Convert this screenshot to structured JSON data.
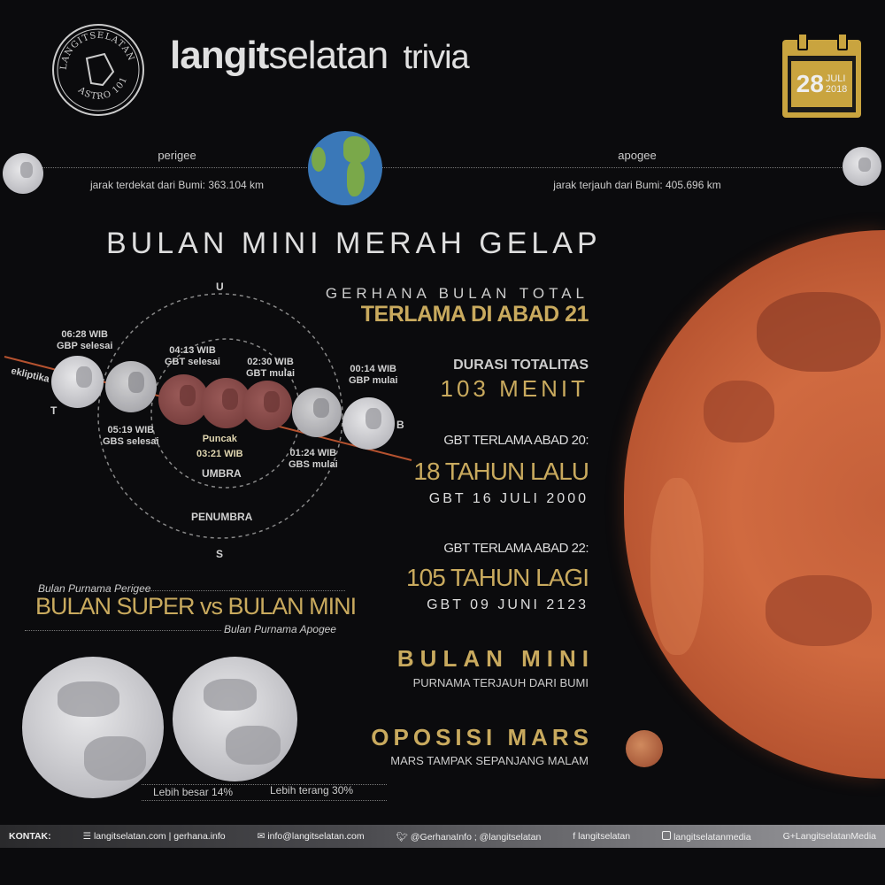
{
  "header": {
    "logo_text_top": "LANGITSELATAN",
    "logo_text_bottom": "ASTRO 101",
    "title_bold": "langit",
    "title_light": "selatan",
    "title_suffix": "trivia",
    "date_day": "28",
    "date_month": "JULI",
    "date_year": "2018"
  },
  "distance": {
    "perigee_label": "perigee",
    "perigee_text": "jarak terdekat dari Bumi: 363.104 km",
    "apogee_label": "apogee",
    "apogee_text": "jarak terjauh dari Bumi: 405.696 km"
  },
  "main_title": "BULAN MINI MERAH GELAP",
  "diagram": {
    "north": "U",
    "south": "S",
    "east": "T",
    "west": "B",
    "ecliptic": "ekliptika",
    "umbra": "UMBRA",
    "penumbra": "PENUMBRA",
    "events": [
      {
        "time": "06:28 WIB",
        "label": "GBP selesai"
      },
      {
        "time": "05:19 WIB",
        "label": "GBS selesai"
      },
      {
        "time": "04:13 WIB",
        "label": "GBT selesai"
      },
      {
        "time": "03:21 WIB",
        "label": "Puncak"
      },
      {
        "time": "02:30 WIB",
        "label": "GBT mulai"
      },
      {
        "time": "01:24 WIB",
        "label": "GBS mulai"
      },
      {
        "time": "00:14 WIB",
        "label": "GBP mulai"
      }
    ]
  },
  "facts": {
    "f1_small": "GERHANA BULAN TOTAL",
    "f1_big": "TERLAMA DI ABAD 21",
    "f2_small": "DURASI TOTALITAS",
    "f2_big": "103 MENIT",
    "f3_small": "GBT TERLAMA ABAD 20:",
    "f3_big": "18 TAHUN LALU",
    "f3_date": "GBT 16 JULI 2000",
    "f4_small": "GBT TERLAMA ABAD 22:",
    "f4_big": "105 TAHUN LAGI",
    "f4_date": "GBT 09 JUNI 2123",
    "f5_big": "BULAN MINI",
    "f5_small": "PURNAMA TERJAUH DARI BUMI",
    "f6_big": "OPOSISI MARS",
    "f6_small": "MARS TAMPAK SEPANJANG MALAM"
  },
  "compare": {
    "super_caption": "Bulan Purnama Perigee",
    "title": "BULAN SUPER vs BULAN MINI",
    "mini_caption": "Bulan Purnama Apogee",
    "bigger": "Lebih besar 14%",
    "brighter": "Lebih terang 30%"
  },
  "footer": {
    "contact_label": "KONTAK:",
    "web": "langitselatan.com | gerhana.info",
    "email": "info@langitselatan.com",
    "twitter": "@GerhanaInfo ; @langitselatan",
    "facebook": "langitselatan",
    "instagram": "langitselatanmedia",
    "gplus": "LangitselatanMedia",
    "icons": [
      "rss-icon",
      "mail-icon",
      "twitter-icon",
      "facebook-icon",
      "instagram-icon",
      "google-plus-icon"
    ]
  },
  "colors": {
    "gold": "#c9aa5e",
    "background": "#0b0b0d",
    "blood_moon": "#b5522f"
  }
}
